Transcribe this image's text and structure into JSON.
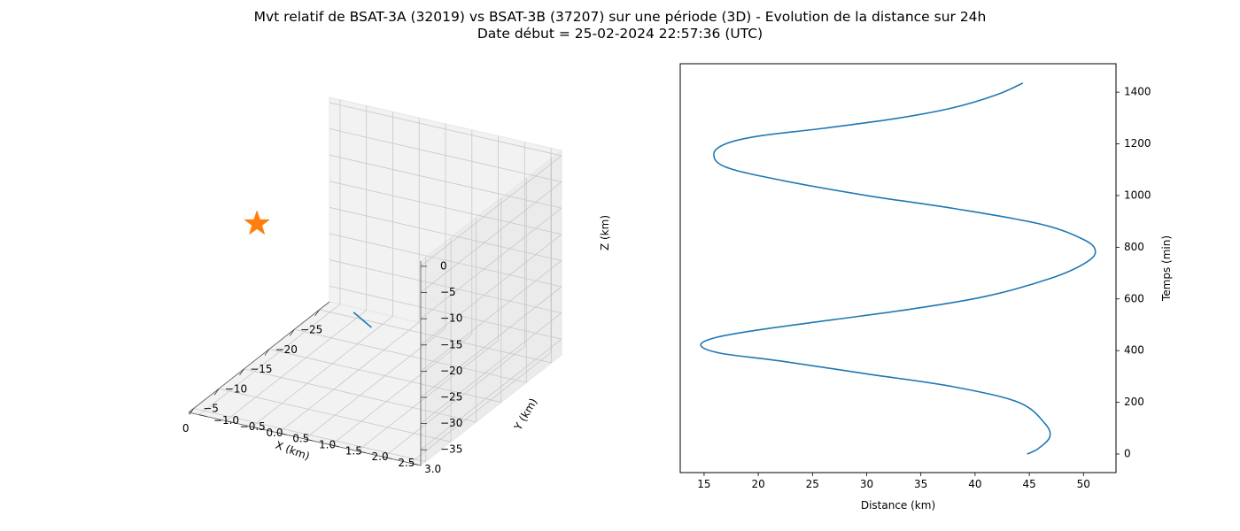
{
  "header": {
    "title_line1": "Mvt relatif de BSAT-3A (32019) vs BSAT-3B (37207) sur une période (3D) - Evolution de la distance sur 24h",
    "title_line2": "Date début = 25-02-2024 22:57:36 (UTC)"
  },
  "chart_data": [
    {
      "type": "line3d",
      "xlabel": "X (km)",
      "ylabel": "Y (km)",
      "zlabel": "Z (km)",
      "xlim": [
        -27,
        1
      ],
      "ylim": [
        -1.2,
        3.2
      ],
      "zlim": [
        -38,
        1
      ],
      "xticks": [
        "−25",
        "−20",
        "−15",
        "−10",
        "−5",
        "0"
      ],
      "yticks": [
        "−1.0",
        "−0.5",
        "0.0",
        "0.5",
        "1.0",
        "1.5",
        "2.0",
        "2.5",
        "3.0"
      ],
      "zticks": [
        "0",
        "−5",
        "−10",
        "−15",
        "−20",
        "−25",
        "−30",
        "−35"
      ],
      "grid": true,
      "series": [
        {
          "kind": "line",
          "color": "#1f77b4",
          "points": [
            [
              -25.5,
              -0.6,
              -37.5
            ],
            [
              0.3,
              2.2,
              -14.5
            ]
          ]
        },
        {
          "kind": "marker",
          "marker": "star",
          "color": "#ff7f0e",
          "points": [
            [
              0,
              0,
              0
            ]
          ]
        }
      ]
    },
    {
      "type": "line",
      "xlabel": "Distance (km)",
      "ylabel": "Temps (min)",
      "xlim": [
        12.8,
        53
      ],
      "ylim": [
        -72,
        1510
      ],
      "xticks": [
        15,
        20,
        25,
        30,
        35,
        40,
        45,
        50
      ],
      "yticks": [
        0,
        200,
        400,
        600,
        800,
        1000,
        1200,
        1400
      ],
      "y_axis_side": "right",
      "grid": false,
      "line_color": "#1f77b4",
      "series": [
        {
          "x": [
            44.8,
            45.8,
            46.9,
            46.4,
            44,
            38,
            30,
            22,
            16.5,
            14.7,
            16,
            20,
            27,
            34,
            41,
            47,
            50.2,
            51.1,
            50,
            46,
            38,
            30,
            22,
            17,
            15.9,
            17,
            20,
            26,
            33,
            38,
            42,
            44.4
          ],
          "y": [
            0,
            20,
            67,
            120,
            200,
            260,
            310,
            360,
            390,
            420,
            450,
            480,
            520,
            560,
            610,
            680,
            740,
            785,
            830,
            890,
            950,
            1000,
            1060,
            1110,
            1160,
            1200,
            1230,
            1260,
            1300,
            1340,
            1390,
            1435
          ]
        }
      ]
    }
  ]
}
